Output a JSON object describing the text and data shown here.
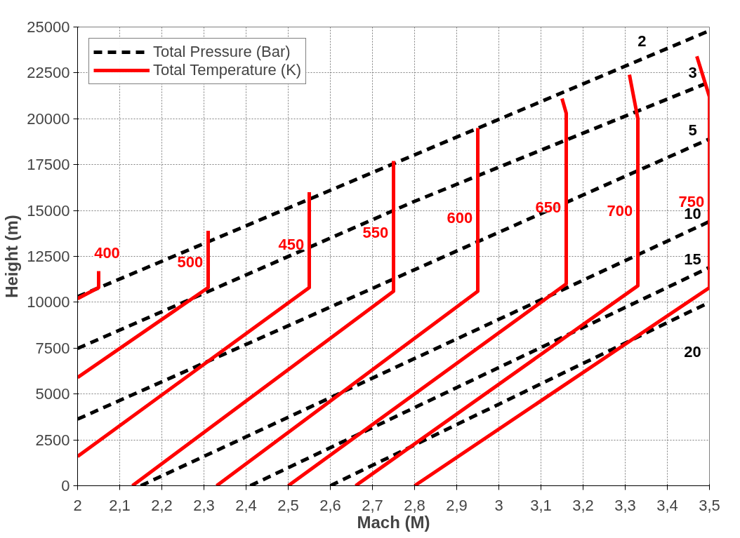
{
  "chart_data": {
    "type": "line",
    "xlabel": "Mach (M)",
    "ylabel": "Height (m)",
    "xlim": [
      2,
      3.5
    ],
    "ylim": [
      0,
      25000
    ],
    "xticks": [
      2,
      {
        "value": 2.1,
        "label": "2,1"
      },
      {
        "value": 2.2,
        "label": "2,2"
      },
      {
        "value": 2.3,
        "label": "2,3"
      },
      {
        "value": 2.4,
        "label": "2,4"
      },
      {
        "value": 2.5,
        "label": "2,5"
      },
      {
        "value": 2.6,
        "label": "2,6"
      },
      {
        "value": 2.7,
        "label": "2,7"
      },
      {
        "value": 2.8,
        "label": "2,8"
      },
      {
        "value": 2.9,
        "label": "2,9"
      },
      3,
      {
        "value": 3.1,
        "label": "3,1"
      },
      {
        "value": 3.2,
        "label": "3,2"
      },
      {
        "value": 3.3,
        "label": "3,3"
      },
      {
        "value": 3.4,
        "label": "3,4"
      },
      {
        "value": 3.5,
        "label": "3,5"
      }
    ],
    "yticks": [
      0,
      2500,
      5000,
      7500,
      10000,
      12500,
      15000,
      17500,
      20000,
      22500,
      25000
    ],
    "grid": true,
    "legend": "top left",
    "series": [
      {
        "name": "Total Pressure (Bar)",
        "color": "#000000",
        "line_style": "dashed",
        "x": [
          2,
          3.5
        ],
        "values": [
          10300,
          24800
        ]
      },
      {
        "color": "#000000",
        "line_style": "dashed",
        "x": [
          2,
          2.8,
          3.5
        ],
        "values": [
          7480,
          15500,
          22000
        ]
      },
      {
        "color": "#000000",
        "line_style": "dashed",
        "x": [
          2,
          3.5
        ],
        "values": [
          3630,
          18900
        ]
      },
      {
        "color": "#000000",
        "line_style": "dashed",
        "x": [
          2.15,
          3.5
        ],
        "values": [
          0,
          14400
        ]
      },
      {
        "color": "#000000",
        "line_style": "dashed",
        "x": [
          2.41,
          3.5
        ],
        "values": [
          0,
          11900
        ]
      },
      {
        "color": "#000000",
        "line_style": "dashed",
        "x": [
          2.6,
          3.5
        ],
        "values": [
          0,
          10000
        ]
      },
      {
        "name": "Total Temperature (K)",
        "color": "#ff0000",
        "line_style": "solid",
        "x": [
          2,
          2.05,
          2.05
        ],
        "values": [
          10200,
          10800,
          11700
        ]
      },
      {
        "color": "#ff0000",
        "line_style": "solid",
        "x": [
          2,
          2.31,
          2.31
        ],
        "values": [
          5900,
          10800,
          13900
        ]
      },
      {
        "color": "#ff0000",
        "line_style": "solid",
        "x": [
          2,
          2.55,
          2.55
        ],
        "values": [
          1600,
          10800,
          16000
        ]
      },
      {
        "color": "#ff0000",
        "line_style": "solid",
        "x": [
          2.13,
          2.75,
          2.75
        ],
        "values": [
          0,
          10600,
          17700
        ]
      },
      {
        "color": "#ff0000",
        "line_style": "solid",
        "x": [
          2.33,
          2.95,
          2.95
        ],
        "values": [
          0,
          10600,
          19500
        ]
      },
      {
        "color": "#ff0000",
        "line_style": "solid",
        "x": [
          2.5,
          3.16,
          3.16,
          3.15
        ],
        "values": [
          0,
          11000,
          20300,
          21100
        ]
      },
      {
        "color": "#ff0000",
        "line_style": "solid",
        "x": [
          2.66,
          3.33,
          3.33,
          3.31
        ],
        "values": [
          0,
          10900,
          20000,
          22400
        ]
      },
      {
        "color": "#ff0000",
        "line_style": "solid",
        "x": [
          2.8,
          3.5,
          3.5,
          3.47
        ],
        "values": [
          0,
          10800,
          21200,
          23400
        ]
      }
    ],
    "annotations": [
      "2",
      "3",
      "5",
      "10",
      "15",
      "20",
      "400",
      "500",
      "450",
      "550",
      "600",
      "650",
      "700",
      "750"
    ]
  }
}
